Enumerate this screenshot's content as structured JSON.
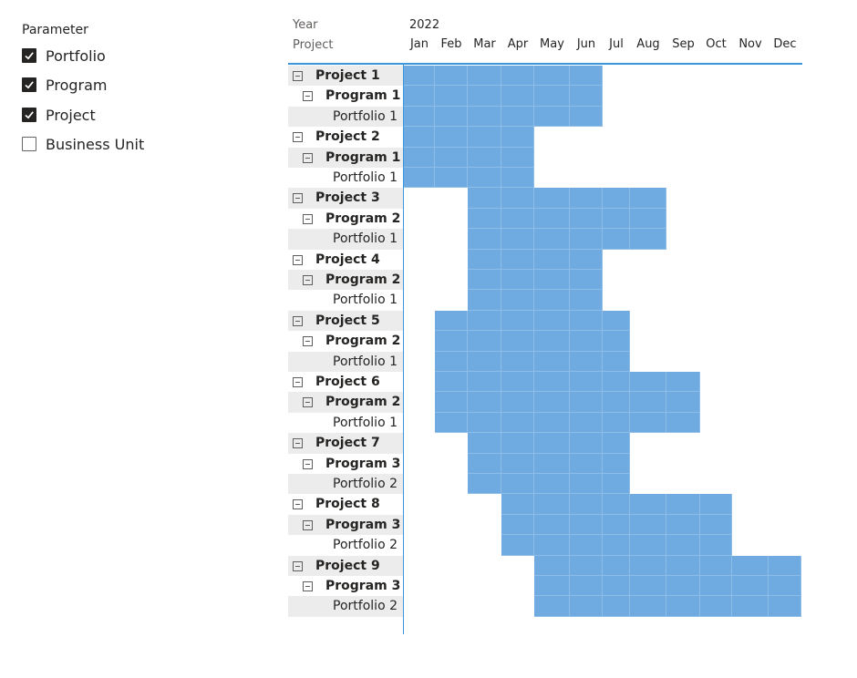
{
  "slicer": {
    "title": "Parameter",
    "items": [
      {
        "label": "Portfolio",
        "checked": true
      },
      {
        "label": "Program",
        "checked": true
      },
      {
        "label": "Project",
        "checked": true
      },
      {
        "label": "Business Unit",
        "checked": false
      }
    ]
  },
  "matrix": {
    "col_header_label": "Year",
    "row_header_label": "Project",
    "year": "2022",
    "months": [
      "Jan",
      "Feb",
      "Mar",
      "Apr",
      "May",
      "Jun",
      "Jul",
      "Aug",
      "Sep",
      "Oct",
      "Nov",
      "Dec"
    ],
    "fill_color": "#6fabe1",
    "rows": [
      {
        "level": 0,
        "label": "Project 1",
        "active_months": [
          1,
          2,
          3,
          4,
          5,
          6
        ]
      },
      {
        "level": 1,
        "label": "Program 1",
        "active_months": [
          1,
          2,
          3,
          4,
          5,
          6
        ]
      },
      {
        "level": 2,
        "label": "Portfolio 1",
        "active_months": [
          1,
          2,
          3,
          4,
          5,
          6
        ]
      },
      {
        "level": 0,
        "label": "Project 2",
        "active_months": [
          1,
          2,
          3,
          4
        ]
      },
      {
        "level": 1,
        "label": "Program 1",
        "active_months": [
          1,
          2,
          3,
          4
        ]
      },
      {
        "level": 2,
        "label": "Portfolio 1",
        "active_months": [
          1,
          2,
          3,
          4
        ]
      },
      {
        "level": 0,
        "label": "Project 3",
        "active_months": [
          3,
          4,
          5,
          6,
          7,
          8
        ]
      },
      {
        "level": 1,
        "label": "Program 2",
        "active_months": [
          3,
          4,
          5,
          6,
          7,
          8
        ]
      },
      {
        "level": 2,
        "label": "Portfolio 1",
        "active_months": [
          3,
          4,
          5,
          6,
          7,
          8
        ]
      },
      {
        "level": 0,
        "label": "Project 4",
        "active_months": [
          3,
          4,
          5,
          6
        ]
      },
      {
        "level": 1,
        "label": "Program 2",
        "active_months": [
          3,
          4,
          5,
          6
        ]
      },
      {
        "level": 2,
        "label": "Portfolio 1",
        "active_months": [
          3,
          4,
          5,
          6
        ]
      },
      {
        "level": 0,
        "label": "Project 5",
        "active_months": [
          2,
          3,
          4,
          5,
          6,
          7
        ]
      },
      {
        "level": 1,
        "label": "Program 2",
        "active_months": [
          2,
          3,
          4,
          5,
          6,
          7
        ]
      },
      {
        "level": 2,
        "label": "Portfolio 1",
        "active_months": [
          2,
          3,
          4,
          5,
          6,
          7
        ]
      },
      {
        "level": 0,
        "label": "Project 6",
        "active_months": [
          2,
          3,
          4,
          5,
          6,
          7,
          8,
          9
        ]
      },
      {
        "level": 1,
        "label": "Program 2",
        "active_months": [
          2,
          3,
          4,
          5,
          6,
          7,
          8,
          9
        ]
      },
      {
        "level": 2,
        "label": "Portfolio 1",
        "active_months": [
          2,
          3,
          4,
          5,
          6,
          7,
          8,
          9
        ]
      },
      {
        "level": 0,
        "label": "Project 7",
        "active_months": [
          3,
          4,
          5,
          6,
          7
        ]
      },
      {
        "level": 1,
        "label": "Program 3",
        "active_months": [
          3,
          4,
          5,
          6,
          7
        ]
      },
      {
        "level": 2,
        "label": "Portfolio 2",
        "active_months": [
          3,
          4,
          5,
          6,
          7
        ]
      },
      {
        "level": 0,
        "label": "Project 8",
        "active_months": [
          4,
          5,
          6,
          7,
          8,
          9,
          10
        ]
      },
      {
        "level": 1,
        "label": "Program 3",
        "active_months": [
          4,
          5,
          6,
          7,
          8,
          9,
          10
        ]
      },
      {
        "level": 2,
        "label": "Portfolio 2",
        "active_months": [
          4,
          5,
          6,
          7,
          8,
          9,
          10
        ]
      },
      {
        "level": 0,
        "label": "Project 9",
        "active_months": [
          5,
          6,
          7,
          8,
          9,
          10,
          11,
          12
        ]
      },
      {
        "level": 1,
        "label": "Program 3",
        "active_months": [
          5,
          6,
          7,
          8,
          9,
          10,
          11,
          12
        ]
      },
      {
        "level": 2,
        "label": "Portfolio 2",
        "active_months": [
          5,
          6,
          7,
          8,
          9,
          10,
          11,
          12
        ]
      }
    ]
  }
}
